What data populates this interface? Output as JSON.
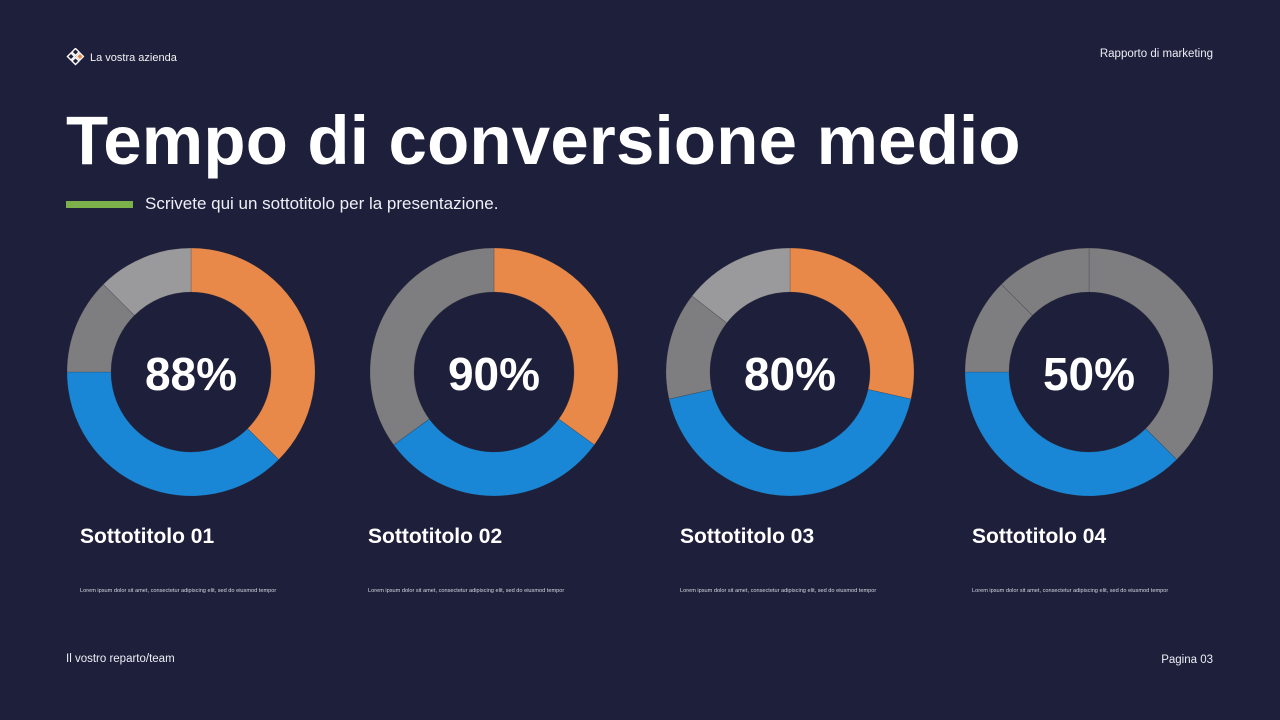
{
  "header": {
    "brand_name": "La vostra azienda",
    "brand_icon": "diamond-grid-logo-icon",
    "report_label": "Rapporto di marketing"
  },
  "title": "Tempo di conversione medio",
  "subtitle": "Scrivete qui un sottotitolo per la presentazione.",
  "colors": {
    "background": "#1e1f3b",
    "accent_bar": "#7bb04b",
    "orange": "#e8894a",
    "blue": "#1a87d6",
    "gray_dark": "#7e7e80",
    "gray_light": "#9a9a9c",
    "text": "#ffffff"
  },
  "chart_data": [
    {
      "type": "pie",
      "variant": "donut",
      "center_label": "88%",
      "title": "Sottotitolo 01",
      "slices": [
        {
          "name": "orange",
          "value": 37.5,
          "color": "#e8894a"
        },
        {
          "name": "blue",
          "value": 37.5,
          "color": "#1a87d6"
        },
        {
          "name": "gray-dark",
          "value": 12.5,
          "color": "#7e7e80"
        },
        {
          "name": "gray-light",
          "value": 12.5,
          "color": "#9a9a9c"
        }
      ],
      "start_angle_deg": 0,
      "direction": "clockwise"
    },
    {
      "type": "pie",
      "variant": "donut",
      "center_label": "90%",
      "title": "Sottotitolo 02",
      "slices": [
        {
          "name": "orange",
          "value": 35,
          "color": "#e8894a"
        },
        {
          "name": "blue",
          "value": 30,
          "color": "#1a87d6"
        },
        {
          "name": "gray",
          "value": 35,
          "color": "#7e7e80"
        }
      ],
      "start_angle_deg": 0,
      "direction": "clockwise"
    },
    {
      "type": "pie",
      "variant": "donut",
      "center_label": "80%",
      "title": "Sottotitolo 03",
      "slices": [
        {
          "name": "orange",
          "value": 28.5,
          "color": "#e8894a"
        },
        {
          "name": "blue",
          "value": 43,
          "color": "#1a87d6"
        },
        {
          "name": "gray-dark",
          "value": 14,
          "color": "#7e7e80"
        },
        {
          "name": "gray-light",
          "value": 14.5,
          "color": "#9a9a9c"
        }
      ],
      "start_angle_deg": 0,
      "direction": "clockwise"
    },
    {
      "type": "pie",
      "variant": "donut",
      "center_label": "50%",
      "title": "Sottotitolo 04",
      "slices": [
        {
          "name": "gray-a",
          "value": 37.5,
          "color": "#7e7e80"
        },
        {
          "name": "blue",
          "value": 37.5,
          "color": "#1a87d6"
        },
        {
          "name": "gray-b",
          "value": 12.5,
          "color": "#7e7e80"
        },
        {
          "name": "gray-c",
          "value": 12.5,
          "color": "#7e7e80"
        }
      ],
      "start_angle_deg": 0,
      "direction": "clockwise"
    }
  ],
  "columns": [
    {
      "subtitle": "Sottotitolo 01",
      "value_label": "88%",
      "description": "Lorem ipsum dolor sit amet, consectetur adipiscing elit, sed do eiusmod tempor"
    },
    {
      "subtitle": "Sottotitolo 02",
      "value_label": "90%",
      "description": "Lorem ipsum dolor sit amet, consectetur adipiscing elit, sed do eiusmod tempor"
    },
    {
      "subtitle": "Sottotitolo 03",
      "value_label": "80%",
      "description": "Lorem ipsum dolor sit amet, consectetur adipiscing elit, sed do eiusmod tempor"
    },
    {
      "subtitle": "Sottotitolo 04",
      "value_label": "50%",
      "description": "Lorem ipsum dolor sit amet, consectetur adipiscing elit, sed do eiusmod tempor"
    }
  ],
  "footer": {
    "team": "Il vostro reparto/team",
    "page": "Pagina 03"
  }
}
